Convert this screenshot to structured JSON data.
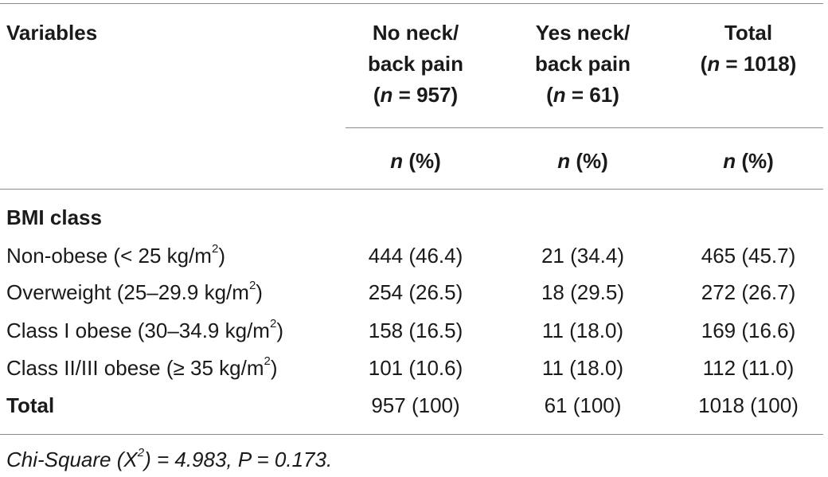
{
  "table": {
    "header": {
      "variables": "Variables",
      "col_no": {
        "line1": "No neck/",
        "line2": "back pain",
        "n_prefix": "(",
        "n_italic": "n",
        "n_suffix": " = 957)"
      },
      "col_yes": {
        "line1": "Yes neck/",
        "line2": "back pain",
        "n_prefix": "(",
        "n_italic": "n",
        "n_suffix": " = 61)"
      },
      "col_total": {
        "line1": "Total",
        "n_prefix": "(",
        "n_italic": "n",
        "n_suffix": " = 1018)"
      },
      "subheader_italic": "n",
      "subheader_suffix": " (%)"
    },
    "section_label": "BMI class",
    "rows": [
      {
        "label": "Non-obese (< 25 kg/m",
        "sup": "2",
        "label_end": ")",
        "no": "444 (46.4)",
        "yes": "21 (34.4)",
        "total": "465 (45.7)"
      },
      {
        "label": "Overweight (25–29.9 kg/m",
        "sup": "2",
        "label_end": ")",
        "no": "254 (26.5)",
        "yes": "18 (29.5)",
        "total": "272 (26.7)"
      },
      {
        "label": "Class I obese (30–34.9 kg/m",
        "sup": "2",
        "label_end": ")",
        "no": "158 (16.5)",
        "yes": "11 (18.0)",
        "total": "169 (16.6)"
      },
      {
        "label": "Class II/III obese (≥ 35 kg/m",
        "sup": "2",
        "label_end": ")",
        "no": "101 (10.6)",
        "yes": "11 (18.0)",
        "total": "112 (11.0)"
      }
    ],
    "total_row": {
      "label": "Total",
      "no": "957 (100)",
      "yes": "61 (100)",
      "total": "1018 (100)"
    },
    "footnote": {
      "prefix": "Chi-Square (X",
      "sup": "2",
      "suffix": ") = 4.983, P = 0.173."
    }
  }
}
